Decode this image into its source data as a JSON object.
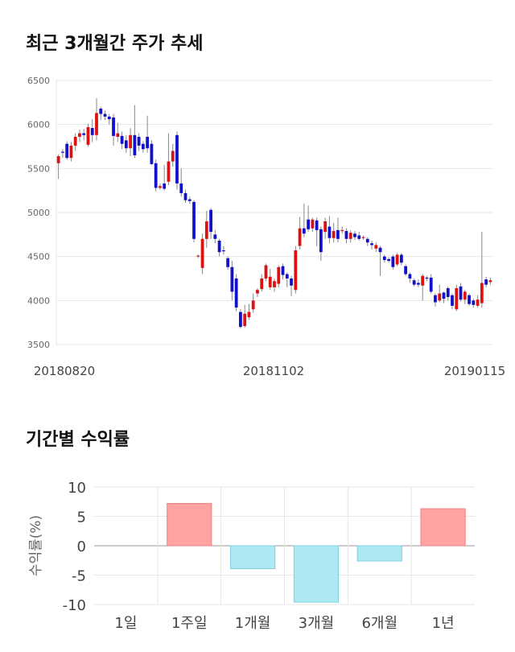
{
  "section1": {
    "title": "최근 3개월간 주가 추세"
  },
  "section2": {
    "title": "기간별 수익률"
  },
  "chart_data": [
    {
      "type": "candlestick",
      "ylim": [
        3500,
        6500
      ],
      "yticks": [
        3500,
        4000,
        4500,
        5000,
        5500,
        6000,
        6500
      ],
      "xticks": [
        "20180820",
        "20181102",
        "20190115"
      ],
      "colors": {
        "up": "#dd1111",
        "down": "#1111cc",
        "wick": "#888888",
        "grid": "#e6e6e6"
      },
      "candles": [
        [
          5560,
          5640,
          5380,
          5660
        ],
        [
          5690,
          5680,
          5620,
          5720
        ],
        [
          5780,
          5620,
          5600,
          5810
        ],
        [
          5620,
          5760,
          5580,
          5800
        ],
        [
          5760,
          5860,
          5700,
          5900
        ],
        [
          5860,
          5900,
          5800,
          5940
        ],
        [
          5900,
          5880,
          5820,
          5950
        ],
        [
          5770,
          5970,
          5750,
          6010
        ],
        [
          5960,
          5880,
          5800,
          6060
        ],
        [
          5880,
          6130,
          5820,
          6300
        ],
        [
          6180,
          6120,
          6050,
          6200
        ],
        [
          6120,
          6090,
          6050,
          6160
        ],
        [
          6090,
          6060,
          6000,
          6120
        ],
        [
          6080,
          5870,
          5760,
          6120
        ],
        [
          5860,
          5900,
          5800,
          6020
        ],
        [
          5870,
          5780,
          5720,
          5920
        ],
        [
          5820,
          5730,
          5680,
          5880
        ],
        [
          5730,
          5880,
          5640,
          5960
        ],
        [
          5880,
          5650,
          5620,
          6220
        ],
        [
          5860,
          5760,
          5700,
          5900
        ],
        [
          5780,
          5720,
          5680,
          5810
        ],
        [
          5860,
          5730,
          5680,
          6100
        ],
        [
          5780,
          5550,
          5540,
          5820
        ],
        [
          5560,
          5280,
          5240,
          5600
        ],
        [
          5280,
          5300,
          5260,
          5330
        ],
        [
          5330,
          5270,
          5250,
          5540
        ],
        [
          5350,
          5580,
          5310,
          5900
        ],
        [
          5580,
          5700,
          5520,
          5780
        ],
        [
          5880,
          5330,
          5260,
          5920
        ],
        [
          5330,
          5220,
          5180,
          5500
        ],
        [
          5220,
          5140,
          5110,
          5260
        ],
        [
          5150,
          5130,
          5100,
          5180
        ],
        [
          5120,
          4700,
          4660,
          5140
        ],
        [
          4500,
          4510,
          4480,
          4520
        ],
        [
          4370,
          4700,
          4300,
          4760
        ],
        [
          4700,
          4900,
          4600,
          5020
        ],
        [
          5030,
          4780,
          4700,
          5050
        ],
        [
          4750,
          4700,
          4650,
          4800
        ],
        [
          4680,
          4550,
          4500,
          4700
        ],
        [
          4570,
          4560,
          4520,
          4620
        ],
        [
          4480,
          4380,
          4350,
          4500
        ],
        [
          4380,
          4100,
          4000,
          4450
        ],
        [
          4250,
          3920,
          3880,
          4300
        ],
        [
          3870,
          3700,
          3680,
          3900
        ],
        [
          3710,
          3850,
          3690,
          3950
        ],
        [
          3810,
          3870,
          3780,
          3960
        ],
        [
          3900,
          4000,
          3860,
          4080
        ],
        [
          4080,
          4120,
          4040,
          4140
        ],
        [
          4130,
          4250,
          4100,
          4300
        ],
        [
          4250,
          4400,
          4220,
          4420
        ],
        [
          4150,
          4270,
          4120,
          4360
        ],
        [
          4150,
          4220,
          4100,
          4250
        ],
        [
          4190,
          4380,
          4150,
          4400
        ],
        [
          4390,
          4290,
          4240,
          4420
        ],
        [
          4300,
          4250,
          4150,
          4320
        ],
        [
          4250,
          4170,
          4050,
          4280
        ],
        [
          4120,
          4570,
          4080,
          4620
        ],
        [
          4620,
          4820,
          4580,
          4950
        ],
        [
          4820,
          4760,
          4720,
          5100
        ],
        [
          4920,
          4810,
          4780,
          5080
        ],
        [
          4820,
          4920,
          4780,
          4940
        ],
        [
          4910,
          4800,
          4620,
          4940
        ],
        [
          4810,
          4550,
          4450,
          4840
        ],
        [
          4780,
          4900,
          4700,
          4940
        ],
        [
          4840,
          4710,
          4650,
          4960
        ],
        [
          4710,
          4790,
          4660,
          4880
        ],
        [
          4800,
          4700,
          4660,
          4940
        ],
        [
          4800,
          4800,
          4760,
          4840
        ],
        [
          4790,
          4700,
          4650,
          4820
        ],
        [
          4700,
          4770,
          4660,
          4800
        ],
        [
          4760,
          4720,
          4690,
          4790
        ],
        [
          4740,
          4700,
          4680,
          4780
        ],
        [
          4720,
          4720,
          4690,
          4740
        ],
        [
          4700,
          4660,
          4620,
          4720
        ],
        [
          4650,
          4630,
          4580,
          4680
        ],
        [
          4590,
          4630,
          4550,
          4660
        ],
        [
          4600,
          4550,
          4280,
          4620
        ],
        [
          4500,
          4460,
          4430,
          4520
        ],
        [
          4470,
          4450,
          4430,
          4490
        ],
        [
          4500,
          4380,
          4350,
          4520
        ],
        [
          4410,
          4520,
          4390,
          4540
        ],
        [
          4520,
          4430,
          4400,
          4540
        ],
        [
          4390,
          4300,
          4280,
          4410
        ],
        [
          4300,
          4250,
          4200,
          4320
        ],
        [
          4230,
          4180,
          4160,
          4250
        ],
        [
          4200,
          4180,
          4150,
          4240
        ],
        [
          4170,
          4280,
          4000,
          4300
        ],
        [
          4260,
          4250,
          4220,
          4280
        ],
        [
          4260,
          4100,
          4080,
          4300
        ],
        [
          4060,
          3980,
          3930,
          4080
        ],
        [
          4000,
          4080,
          3980,
          4180
        ],
        [
          4090,
          4020,
          3970,
          4100
        ],
        [
          4140,
          4040,
          4000,
          4160
        ],
        [
          4060,
          3940,
          3900,
          4080
        ],
        [
          3900,
          4140,
          3880,
          4180
        ],
        [
          4160,
          4010,
          3990,
          4200
        ],
        [
          4010,
          4100,
          3960,
          4120
        ],
        [
          4060,
          3960,
          3940,
          4080
        ],
        [
          4000,
          3950,
          3920,
          4020
        ],
        [
          3940,
          4010,
          3920,
          4060
        ],
        [
          3970,
          4200,
          3920,
          4780
        ],
        [
          4240,
          4180,
          4150,
          4270
        ],
        [
          4210,
          4230,
          4180,
          4260
        ]
      ]
    },
    {
      "type": "bar",
      "categories": [
        "1일",
        "1주일",
        "1개월",
        "3개월",
        "6개월",
        "1년"
      ],
      "values": [
        0,
        7.2,
        -3.9,
        -9.6,
        -2.6,
        6.3
      ],
      "ylim": [
        -10,
        10
      ],
      "yticks": [
        10,
        5,
        0,
        -5,
        -10
      ],
      "ylabel": "수익률(%)",
      "colors": {
        "positive": "#ffa3a3",
        "negative": "#aee9f3",
        "grid": "#e6e6e6",
        "zero": "#999999"
      }
    }
  ]
}
